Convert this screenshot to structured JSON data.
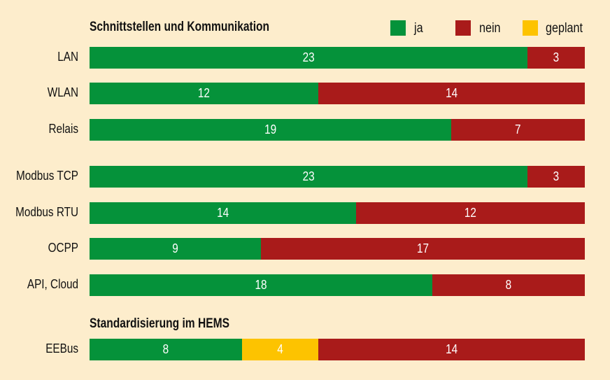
{
  "chart_data": {
    "type": "bar",
    "orientation": "horizontal",
    "stacked": true,
    "sections": [
      {
        "title": "Schnittstellen und Kommunikation"
      },
      {
        "title": "Standardisierung im HEMS"
      }
    ],
    "categories": [
      "LAN",
      "WLAN",
      "Relais",
      "Modbus TCP",
      "Modbus RTU",
      "OCPP",
      "API, Cloud",
      "EEBus"
    ],
    "series": [
      {
        "name": "ja",
        "color": "#05923a",
        "values": [
          23,
          12,
          19,
          23,
          14,
          9,
          18,
          8
        ]
      },
      {
        "name": "geplant",
        "color": "#fdc300",
        "values": [
          0,
          0,
          0,
          0,
          0,
          0,
          0,
          4
        ]
      },
      {
        "name": "nein",
        "color": "#a91b1a",
        "values": [
          3,
          14,
          7,
          3,
          12,
          17,
          8,
          14
        ]
      }
    ],
    "legend": {
      "placement": "top-right",
      "entries": [
        "ja",
        "nein",
        "geplant"
      ]
    },
    "xlim": [
      0,
      26
    ],
    "grid": false,
    "axes_visible": false,
    "background": "#fdedcc"
  }
}
